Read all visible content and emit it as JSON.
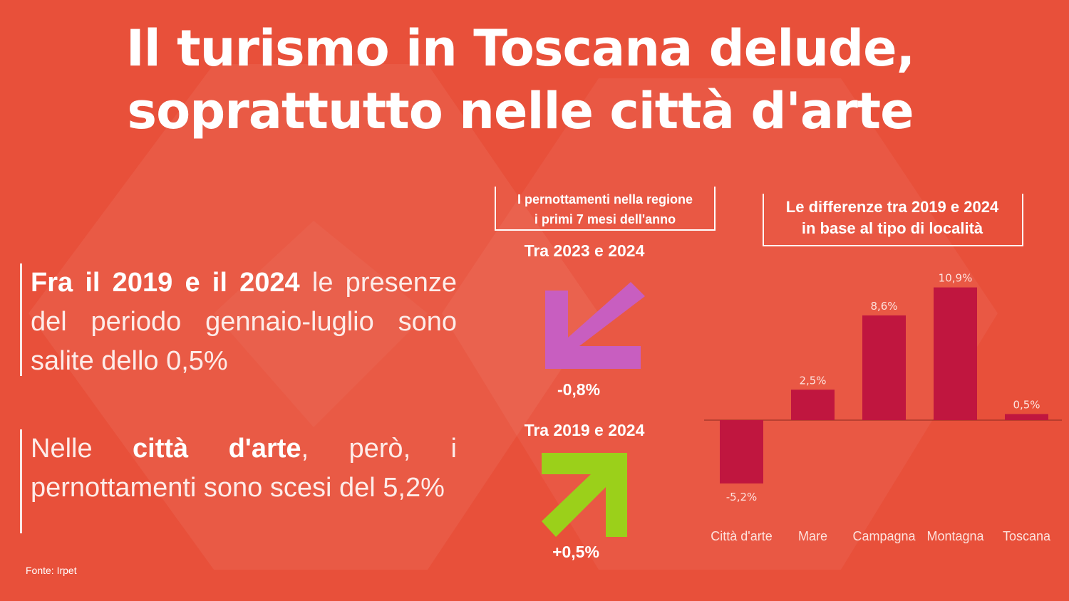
{
  "title_line1": "Il turismo in Toscana delude,",
  "title_line2": "soprattutto nelle città d'arte",
  "text1": {
    "bold": "Fra il 2019 e il 2024",
    "rest": " le presenze del periodo gennaio-luglio sono salite dello 0,5%"
  },
  "text2": {
    "pre": "Nelle ",
    "bold": "città d'arte",
    "rest": ", però, i pernottamenti sono scesi del 5,2%"
  },
  "source": "Fonte: Irpet",
  "left_box": {
    "line1": "I pernottamenti nella regione",
    "line2": "i primi 7 mesi dell'anno"
  },
  "arrow_down": {
    "period": "Tra 2023 e 2024",
    "value": "-0,8%",
    "color": "#c85ec0"
  },
  "arrow_up": {
    "period": "Tra 2019 e 2024",
    "value": "+0,5%",
    "color": "#9bd01a"
  },
  "right_box": {
    "line1": "Le differenze tra 2019 e 2024",
    "line2": "in base al tipo di località"
  },
  "colors": {
    "background": "#e8503a",
    "bar": "#c0163f"
  },
  "chart_data": {
    "type": "bar",
    "categories": [
      "Città d'arte",
      "Mare",
      "Campagna",
      "Montagna",
      "Toscana"
    ],
    "values": [
      -5.2,
      2.5,
      8.6,
      10.9,
      0.5
    ],
    "value_labels": [
      "-5,2%",
      "2,5%",
      "8,6%",
      "10,9%",
      "0,5%"
    ],
    "ylim": [
      -5.2,
      10.9
    ],
    "grid": false,
    "title": "Le differenze tra 2019 e 2024 in base al tipo di località"
  }
}
